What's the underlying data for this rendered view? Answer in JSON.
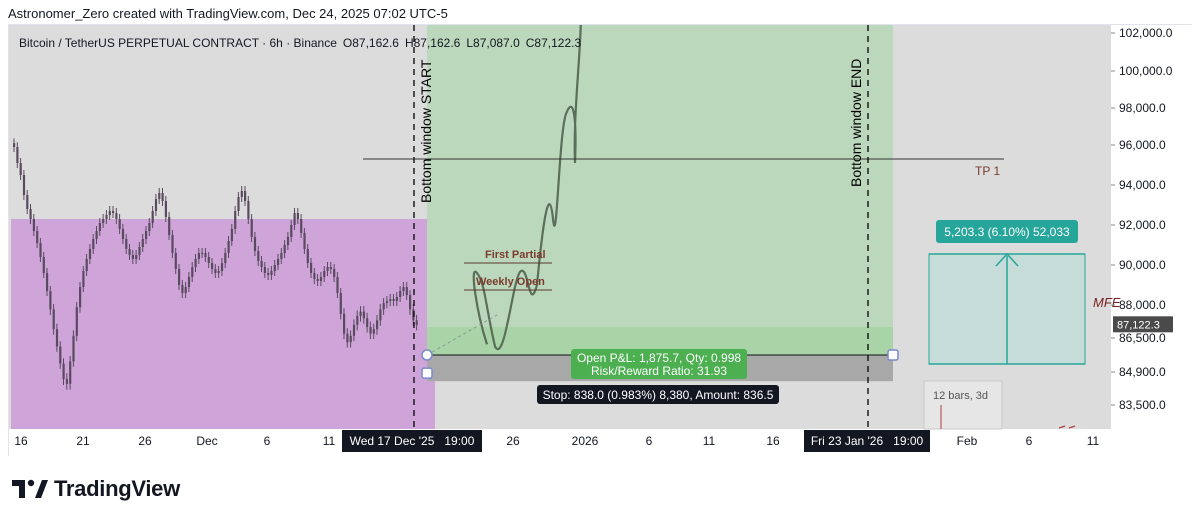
{
  "header": {
    "attribution": "Astronomer_Zero created with TradingView.com, Dec 24, 2025 07:02 UTC-5"
  },
  "symbol": {
    "title": "Bitcoin / TetherUS PERPETUAL CONTRACT · 6h · Binance",
    "ohlc": [
      {
        "k": "O",
        "v": "87,162.6"
      },
      {
        "k": "H",
        "v": "87,162.6"
      },
      {
        "k": "L",
        "v": "87,087.0"
      },
      {
        "k": "C",
        "v": "87,122.3"
      }
    ]
  },
  "colors": {
    "background": "#dcdcdc",
    "purple_zone": "#cfa5d9",
    "green_zone": "#bcd8bc",
    "profit_box": "#a8d4a8",
    "stop_box": "#a8a8a8",
    "candle": "#5a4a60",
    "path": "#5a6e5a",
    "label_brown": "#7a3b2e",
    "teal": "#26a69a",
    "green_label": "#4caf50",
    "dark_label": "#131722"
  },
  "annotations": {
    "window_start": "Bottom window START",
    "window_end": "Bottom window END",
    "tp1": "TP 1",
    "first_partial": "First Partial",
    "weekly_open": "Weekly Open",
    "mfe": "MFE",
    "pnl_line1": "Open P&L: 1,875.7, Qty: 0.998",
    "pnl_line2": "Risk/Reward Ratio: 31.93",
    "stop_label": "Stop: 838.0 (0.983%) 8,380, Amount: 836.5",
    "measure_label": "5,203.3 (6.10%) 52,033",
    "bars_label": "12 bars, 3d"
  },
  "chart_data": {
    "type": "candlestick",
    "title": "Bitcoin / TetherUS PERPETUAL CONTRACT · 6h · Binance",
    "y_ticks": [
      "102,000.0",
      "100,000.0",
      "98,000.0",
      "96,000.0",
      "94,000.0",
      "92,000.0",
      "90,000.0",
      "88,000.0",
      "86,500.0",
      "84,900.0",
      "83,500.0"
    ],
    "current_price": "87,122.3",
    "x_ticks": [
      "16",
      "21",
      "26",
      "Dec",
      "6",
      "11",
      "26",
      "2026",
      "6",
      "11",
      "16",
      "Feb",
      "6",
      "11"
    ],
    "x_highlight": [
      "Wed 17 Dec '25   19:00",
      "Fri 23 Jan '26   19:00"
    ],
    "levels": {
      "tp1": 95300,
      "first_partial": 90100,
      "weekly_open": 88750,
      "entry": 85700,
      "stop": 84850
    },
    "series_close": [
      95900,
      95100,
      94500,
      93500,
      92800,
      92300,
      91700,
      91100,
      90400,
      89600,
      88700,
      87800,
      86900,
      86100,
      85300,
      84600,
      84400,
      85400,
      86600,
      87900,
      88900,
      89700,
      90300,
      90800,
      91300,
      91700,
      92100,
      92300,
      92500,
      92700,
      92600,
      92300,
      91800,
      91300,
      90800,
      90500,
      90300,
      90500,
      90900,
      91300,
      91700,
      92100,
      92700,
      93300,
      93600,
      93200,
      92400,
      91500,
      90600,
      89800,
      89000,
      88600,
      88900,
      89400,
      89900,
      90300,
      90600,
      90600,
      90400,
      90100,
      89800,
      89600,
      89700,
      90100,
      90600,
      91200,
      91800,
      92700,
      93400,
      93700,
      93200,
      92300,
      91400,
      90700,
      90200,
      89900,
      89600,
      89500,
      89700,
      90000,
      90300,
      90600,
      91000,
      91400,
      92000,
      92600,
      92300,
      91600,
      90800,
      90100,
      89600,
      89300,
      89200,
      89400,
      89700,
      89900,
      89800,
      89400,
      88600,
      87600,
      86700,
      86300,
      86600,
      87100,
      87500,
      87700,
      87400,
      87000,
      86700,
      86900,
      87300,
      87800,
      88100,
      88200,
      88300,
      88200,
      88400,
      88700,
      88900,
      88500,
      87800,
      87300,
      87100
    ]
  }
}
